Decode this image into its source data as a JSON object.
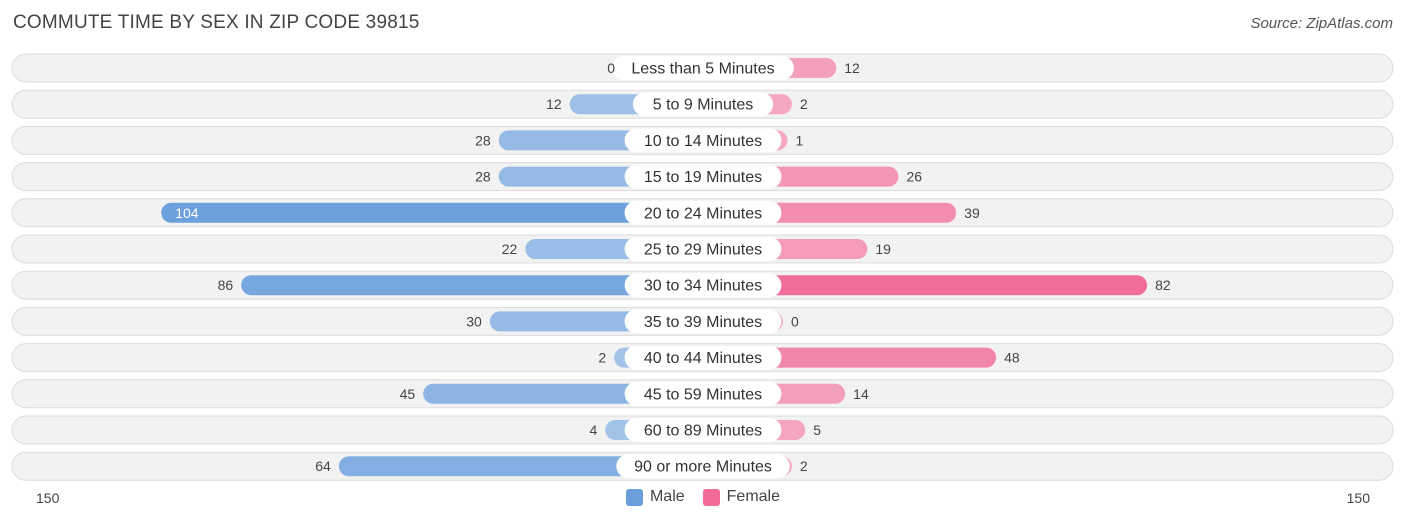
{
  "title": "COMMUTE TIME BY SEX IN ZIP CODE 39815",
  "source": "Source: ZipAtlas.com",
  "axis": {
    "left_label": "150",
    "right_label": "150"
  },
  "legend": {
    "male_label": "Male",
    "female_label": "Female"
  },
  "colors": {
    "male_light": "#a4c4e8",
    "male_dark": "#6a9fdc",
    "female_light": "#f5a9c0",
    "female_dark": "#f06b96",
    "row_bg": "#f2f2f2"
  },
  "chart_data": {
    "type": "bar",
    "orientation": "horizontal-diverging",
    "categories": [
      "Less than 5 Minutes",
      "5 to 9 Minutes",
      "10 to 14 Minutes",
      "15 to 19 Minutes",
      "20 to 24 Minutes",
      "25 to 29 Minutes",
      "30 to 34 Minutes",
      "35 to 39 Minutes",
      "40 to 44 Minutes",
      "45 to 59 Minutes",
      "60 to 89 Minutes",
      "90 or more Minutes"
    ],
    "series": [
      {
        "name": "Male",
        "values": [
          0,
          12,
          28,
          28,
          104,
          22,
          86,
          30,
          2,
          45,
          4,
          64
        ]
      },
      {
        "name": "Female",
        "values": [
          12,
          2,
          1,
          26,
          39,
          19,
          82,
          0,
          48,
          14,
          5,
          2
        ]
      }
    ],
    "xlim": [
      -150,
      150
    ],
    "legend_position": "bottom-center"
  }
}
